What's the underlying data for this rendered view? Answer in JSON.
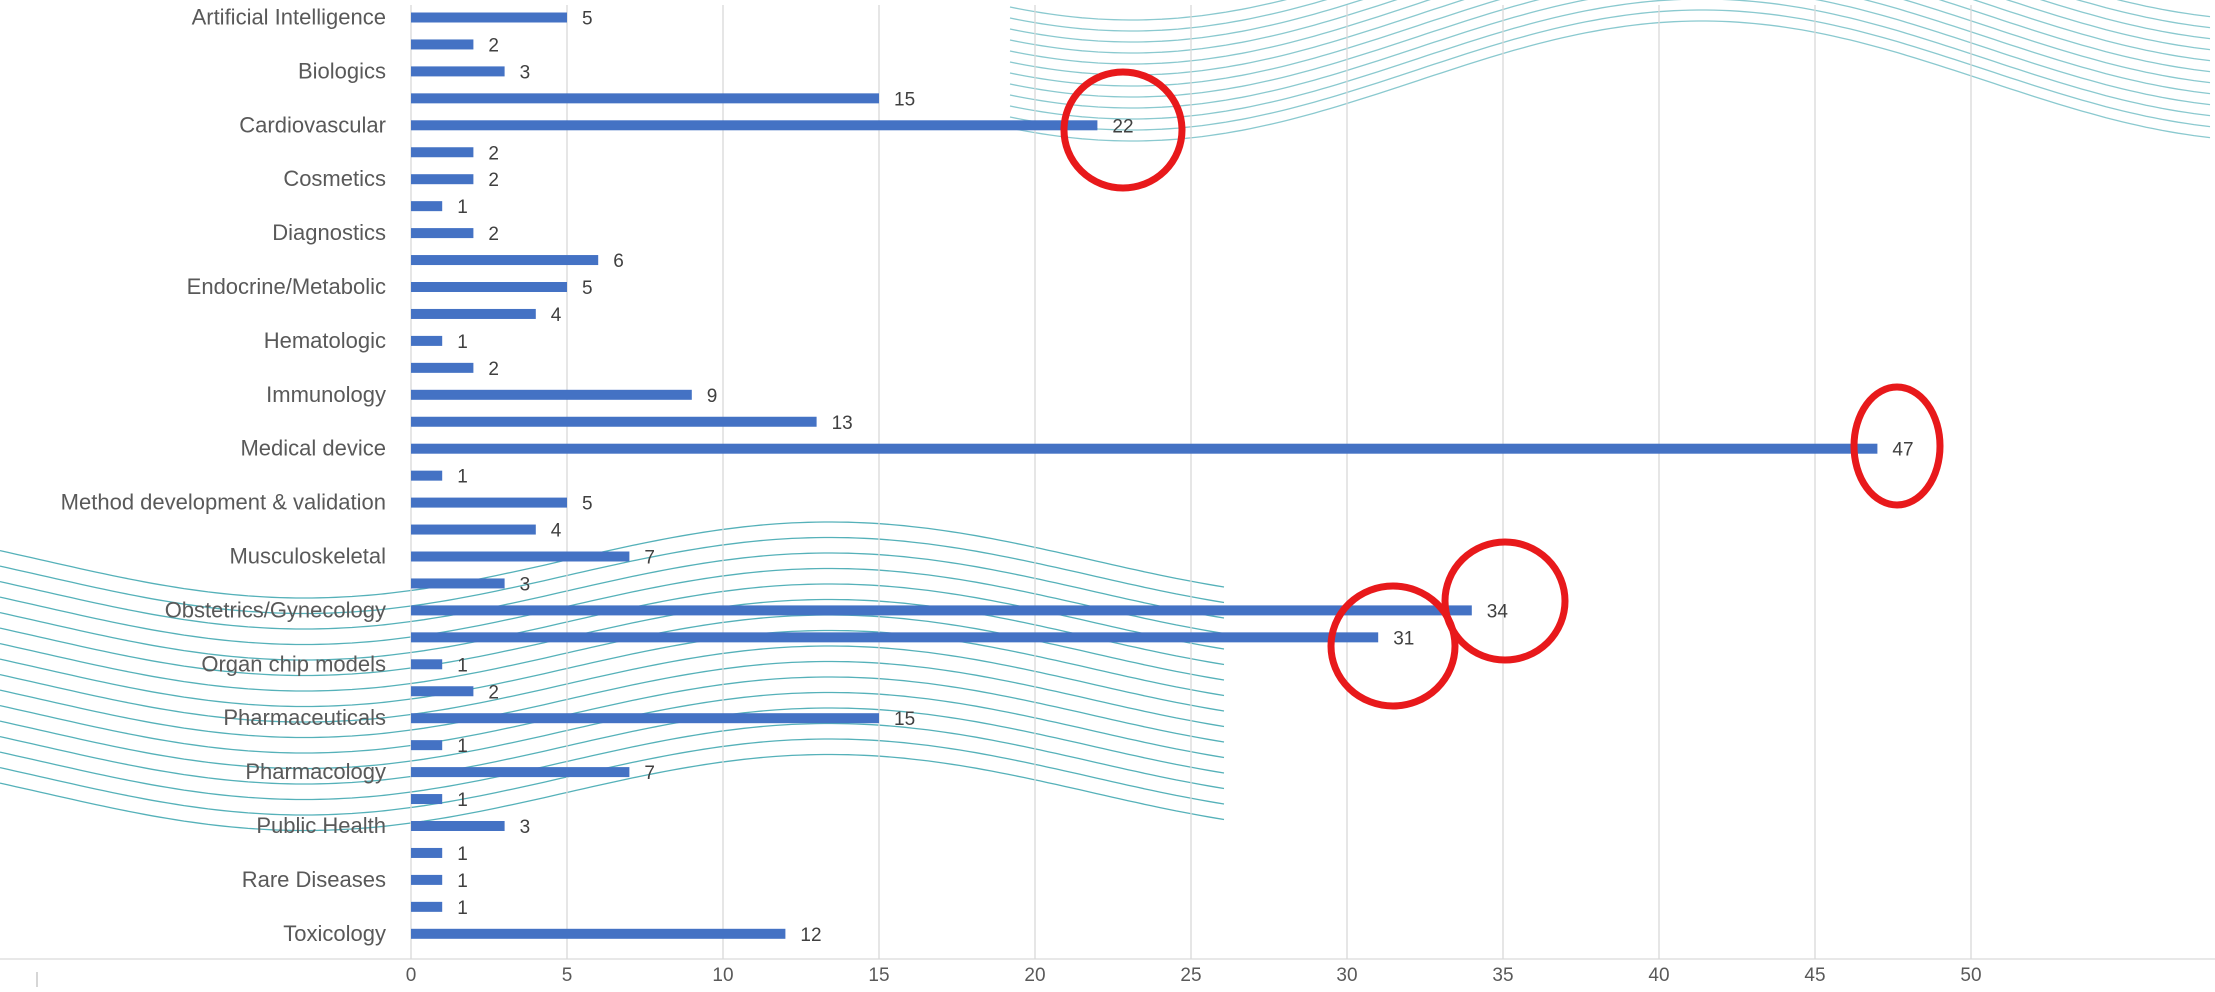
{
  "chart_data": {
    "type": "bar",
    "orientation": "horizontal",
    "title": "",
    "xlabel": "",
    "ylabel": "",
    "xlim": [
      0,
      50
    ],
    "x_ticks": [
      0,
      5,
      10,
      15,
      20,
      25,
      30,
      35,
      40,
      45,
      50
    ],
    "grid": "vertical",
    "legend": "none",
    "bar_color": "#4472C4",
    "highlight_color": "#E8191B",
    "wave_color": "#2A9DA8",
    "bars": [
      {
        "label": "Artificial Intelligence",
        "value": 5
      },
      {
        "label": "",
        "value": 2
      },
      {
        "label": "Biologics",
        "value": 3
      },
      {
        "label": "",
        "value": 15
      },
      {
        "label": "Cardiovascular",
        "value": 22,
        "highlighted": true
      },
      {
        "label": "",
        "value": 2
      },
      {
        "label": "Cosmetics",
        "value": 2
      },
      {
        "label": "",
        "value": 1
      },
      {
        "label": "Diagnostics",
        "value": 2
      },
      {
        "label": "",
        "value": 6
      },
      {
        "label": "Endocrine/Metabolic",
        "value": 5
      },
      {
        "label": "",
        "value": 4
      },
      {
        "label": "Hematologic",
        "value": 1
      },
      {
        "label": "",
        "value": 2
      },
      {
        "label": "Immunology",
        "value": 9
      },
      {
        "label": "",
        "value": 13
      },
      {
        "label": "Medical device",
        "value": 47,
        "highlighted": true
      },
      {
        "label": "",
        "value": 1
      },
      {
        "label": "Method development & validation",
        "value": 5
      },
      {
        "label": "",
        "value": 4
      },
      {
        "label": "Musculoskeletal",
        "value": 7
      },
      {
        "label": "",
        "value": 3
      },
      {
        "label": "Obstetrics/Gynecology",
        "value": 34,
        "highlighted": true
      },
      {
        "label": "",
        "value": 31,
        "highlighted": true
      },
      {
        "label": "Organ chip models",
        "value": 1
      },
      {
        "label": "",
        "value": 2
      },
      {
        "label": "Pharmaceuticals",
        "value": 15
      },
      {
        "label": "",
        "value": 1
      },
      {
        "label": "Pharmacology",
        "value": 7
      },
      {
        "label": "",
        "value": 1
      },
      {
        "label": "Public Health",
        "value": 3
      },
      {
        "label": "",
        "value": 1
      },
      {
        "label": "Rare Diseases",
        "value": 1
      },
      {
        "label": "",
        "value": 1
      },
      {
        "label": "Toxicology",
        "value": 12
      }
    ]
  }
}
